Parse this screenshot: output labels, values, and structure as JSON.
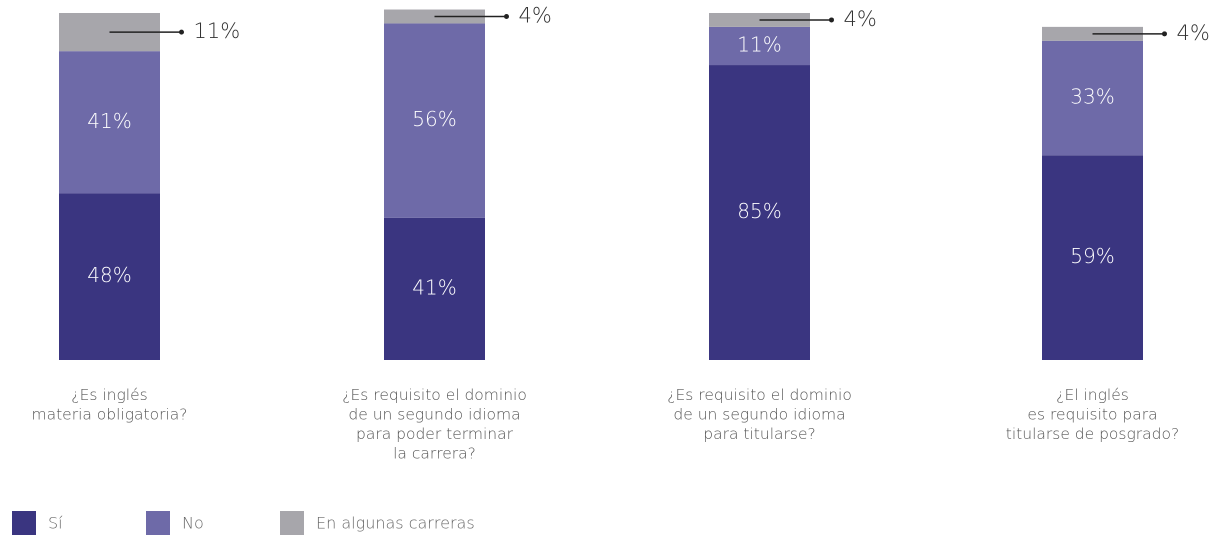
{
  "chart_data": {
    "type": "stacked_bar",
    "categories": [
      "¿Es inglés\nmateria obligatoria?",
      "¿Es requisito el dominio\nde un segundo idioma\npara poder terminar\nla carrera?",
      "¿Es requisito el dominio\nde un segundo idioma\npara titularse?",
      "¿El inglés\nes requisito para\ntitularse de posgrado?"
    ],
    "series": [
      {
        "name": "Sí",
        "color": "#3a3580",
        "values": [
          48,
          41,
          85,
          59
        ],
        "value_labels": [
          "48%",
          "41%",
          "85%",
          "59%"
        ]
      },
      {
        "name": "No",
        "color": "#6e6aa8",
        "values": [
          41,
          56,
          11,
          33
        ],
        "value_labels": [
          "41%",
          "56%",
          "11%",
          "33%"
        ]
      },
      {
        "name": "En algunas carreras",
        "color": "#a7a6ab",
        "values": [
          11,
          4,
          4,
          4
        ],
        "value_labels": [
          "11%",
          "4%",
          "4%",
          "4%"
        ]
      }
    ],
    "ylim": [
      0,
      100
    ]
  }
}
